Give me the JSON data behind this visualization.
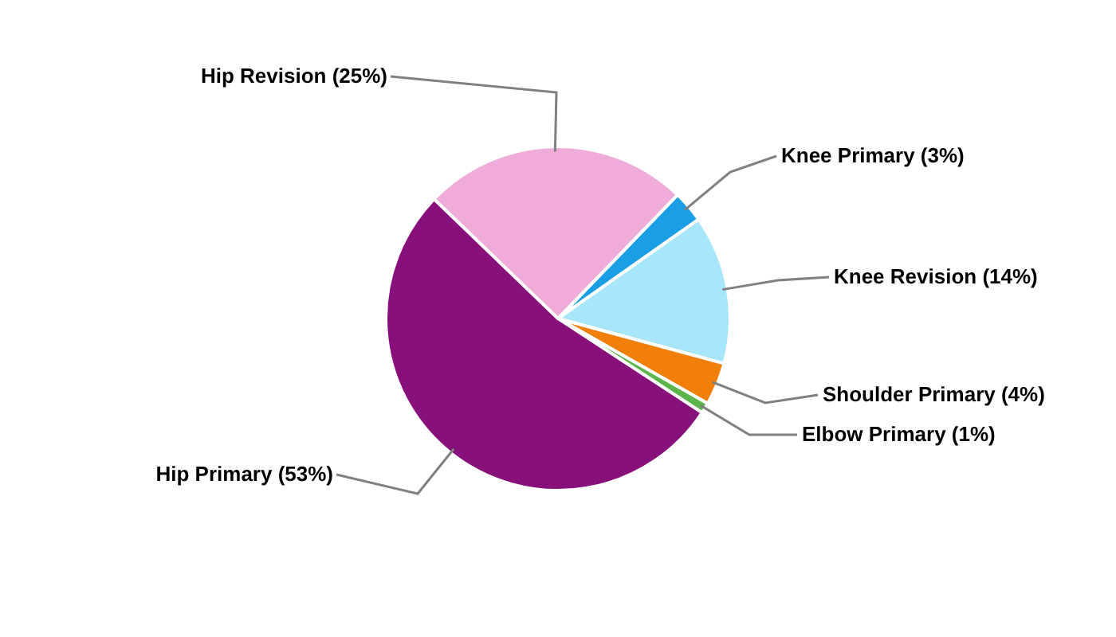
{
  "chart_data": {
    "type": "pie",
    "categories": [
      "Knee Primary (3%)",
      "Knee Revision (14%)",
      "Shoulder Primary (4%)",
      "Elbow Primary (1%)",
      "Hip Primary (53%)",
      "Hip Revision (25%)"
    ],
    "values": [
      3,
      14,
      4,
      1,
      53,
      25
    ],
    "colors": [
      "#1a9fe6",
      "#a7e6fb",
      "#f0800a",
      "#5cb54a",
      "#87107a",
      "#f0acd8"
    ]
  }
}
